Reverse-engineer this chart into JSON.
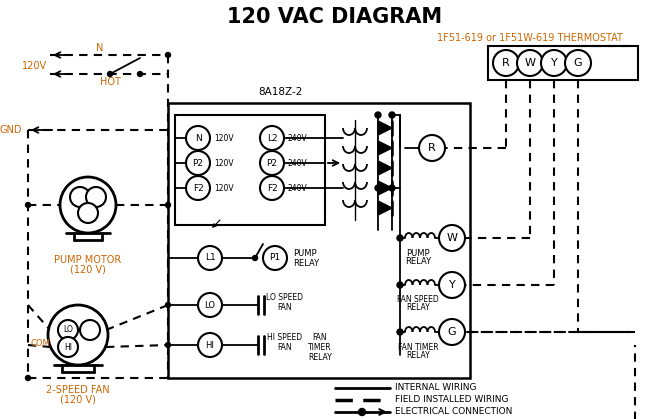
{
  "title": "120 VAC DIAGRAM",
  "thermostat_label": "1F51-619 or 1F51W-619 THERMOSTAT",
  "controller_label": "8A18Z-2",
  "pump_motor_label": "PUMP MOTOR\n(120 V)",
  "fan_label": "2-SPEED FAN\n(120 V)",
  "legend_items": [
    "INTERNAL WIRING",
    "FIELD INSTALLED WIRING",
    "ELECTRICAL CONNECTION"
  ],
  "bg_color": "#ffffff",
  "line_color": "#000000",
  "orange_color": "#cc6600"
}
